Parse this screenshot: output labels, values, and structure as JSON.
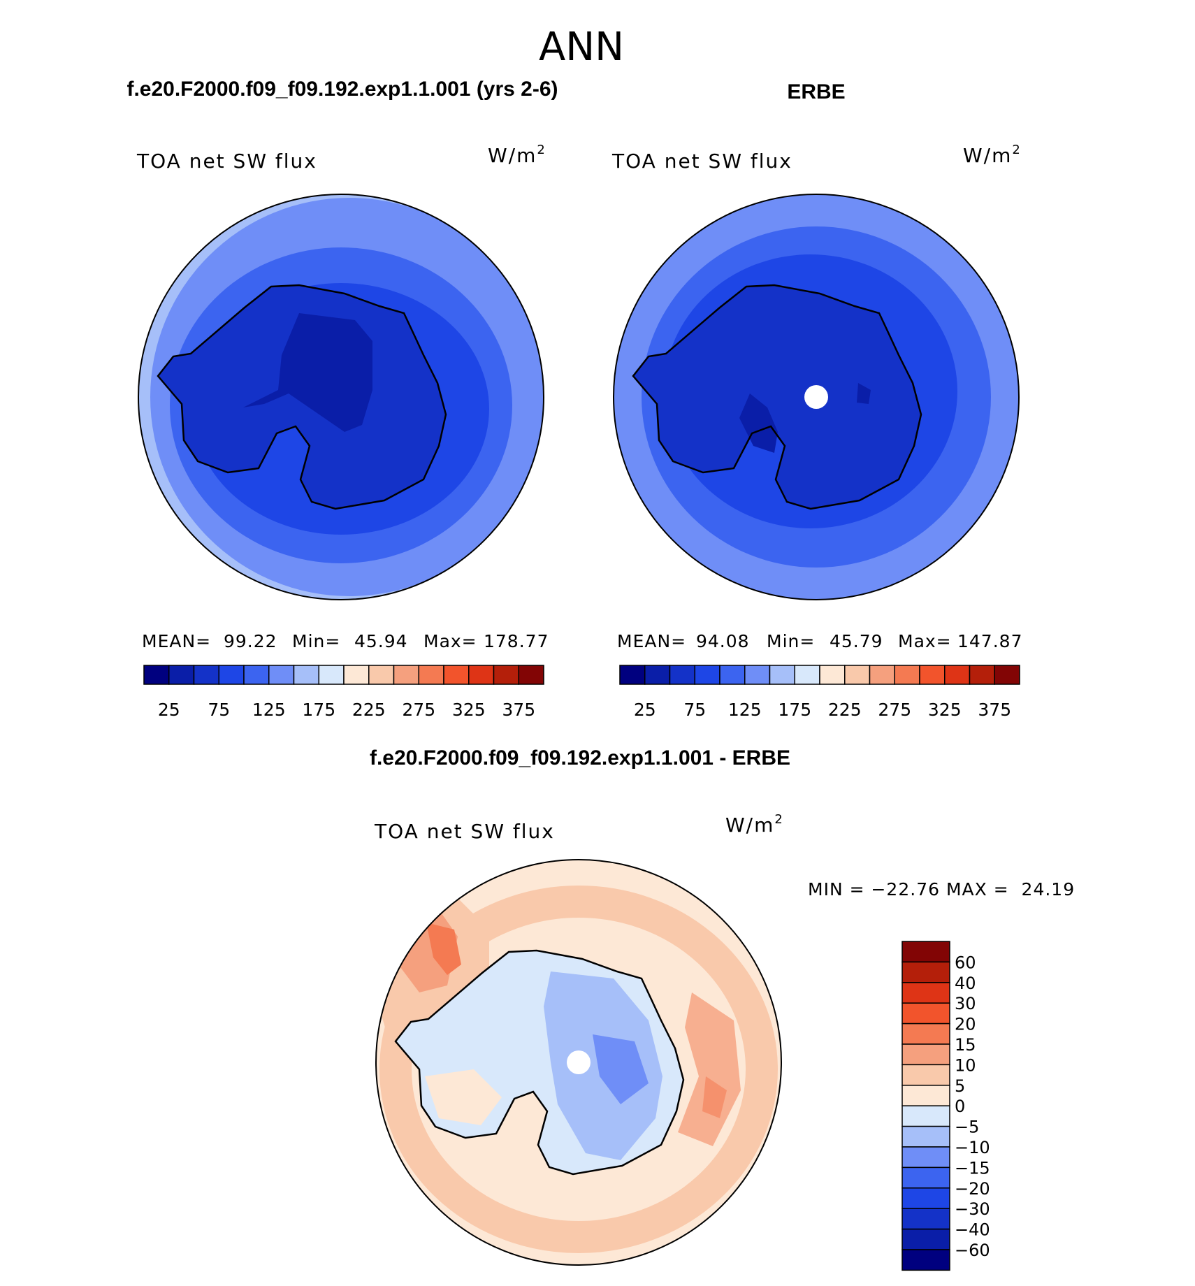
{
  "page_title": "ANN",
  "chart_data": [
    {
      "type": "heatmap",
      "projection": "south-polar-stereographic",
      "title": "f.e20.F2000.f09_f09.192.exp1.1.001 (yrs 2-6)",
      "left_label": "TOA net SW flux",
      "units_main": "W/m",
      "units_sup": "2",
      "stats": {
        "mean_label": "MEAN=",
        "mean": "99.22",
        "min_label": "Min=",
        "min": "45.94",
        "max_label": "Max=",
        "max": "178.77"
      },
      "colorbar": {
        "colors": [
          "#00007f",
          "#0a1ea8",
          "#1432c8",
          "#1e46e6",
          "#3c64f0",
          "#6f8ef7",
          "#a6bff9",
          "#d8e8fb",
          "#fde8d6",
          "#f9c9ab",
          "#f5a07e",
          "#f47a52",
          "#f2542c",
          "#de3416",
          "#b41f0a",
          "#820505"
        ],
        "tick_labels": [
          "25",
          "75",
          "125",
          "175",
          "225",
          "275",
          "325",
          "375"
        ]
      },
      "contour_levels": [
        25,
        50,
        75,
        100,
        125,
        150,
        175,
        200,
        225,
        250,
        275,
        300,
        325,
        350,
        375
      ]
    },
    {
      "type": "heatmap",
      "projection": "south-polar-stereographic",
      "title": "ERBE",
      "left_label": "TOA net SW flux",
      "units_main": "W/m",
      "units_sup": "2",
      "stats": {
        "mean_label": "MEAN=",
        "mean": "94.08",
        "min_label": "Min=",
        "min": "45.79",
        "max_label": "Max=",
        "max": "147.87"
      },
      "colorbar": {
        "colors": [
          "#00007f",
          "#0a1ea8",
          "#1432c8",
          "#1e46e6",
          "#3c64f0",
          "#6f8ef7",
          "#a6bff9",
          "#d8e8fb",
          "#fde8d6",
          "#f9c9ab",
          "#f5a07e",
          "#f47a52",
          "#f2542c",
          "#de3416",
          "#b41f0a",
          "#820505"
        ],
        "tick_labels": [
          "25",
          "75",
          "125",
          "175",
          "225",
          "275",
          "325",
          "375"
        ]
      },
      "contour_levels": [
        25,
        50,
        75,
        100,
        125,
        150,
        175,
        200,
        225,
        250,
        275,
        300,
        325,
        350,
        375
      ]
    },
    {
      "type": "heatmap",
      "projection": "south-polar-stereographic",
      "title": "f.e20.F2000.f09_f09.192.exp1.1.001 - ERBE",
      "left_label": "TOA net SW flux",
      "units_main": "W/m",
      "units_sup": "2",
      "stats_text": "MIN = −22.76 MAX =  24.19",
      "colorbar": {
        "colors": [
          "#820505",
          "#b41f0a",
          "#de3416",
          "#f2542c",
          "#f47a52",
          "#f5a07e",
          "#f9c9ab",
          "#fde8d6",
          "#d8e8fb",
          "#a6bff9",
          "#6f8ef7",
          "#3c64f0",
          "#1e46e6",
          "#1432c8",
          "#0a1ea8",
          "#00007f"
        ],
        "tick_labels": [
          "60",
          "40",
          "30",
          "20",
          "15",
          "10",
          "5",
          "0",
          "−5",
          "−10",
          "−15",
          "−20",
          "−30",
          "−40",
          "−60"
        ]
      },
      "contour_levels": [
        -60,
        -40,
        -30,
        -20,
        -15,
        -10,
        -5,
        0,
        5,
        10,
        15,
        20,
        30,
        40,
        60
      ]
    }
  ]
}
